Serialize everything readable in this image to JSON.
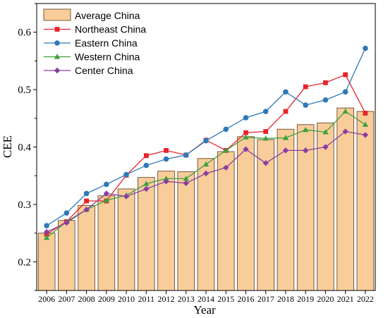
{
  "chart_data": {
    "type": "bar",
    "x": [
      2006,
      2007,
      2008,
      2009,
      2010,
      2011,
      2012,
      2013,
      2014,
      2015,
      2016,
      2017,
      2018,
      2019,
      2020,
      2021,
      2022
    ],
    "xlabel": "Year",
    "ylabel": "CEE",
    "ylim": [
      0.15,
      0.65
    ],
    "yticks": [
      0.2,
      0.3,
      0.4,
      0.5,
      0.6
    ],
    "grid": false,
    "legend_position": "top-left",
    "bars": {
      "name": "Average China",
      "color": "#f9cd9a",
      "edge_color": "#6b4a2a",
      "values": [
        0.25,
        0.272,
        0.298,
        0.315,
        0.327,
        0.347,
        0.358,
        0.357,
        0.38,
        0.392,
        0.418,
        0.413,
        0.431,
        0.439,
        0.442,
        0.468,
        0.462
      ]
    },
    "series": [
      {
        "name": "Northeast China",
        "color": "#e8232b",
        "marker": "square",
        "values": [
          0.248,
          0.27,
          0.306,
          0.306,
          0.351,
          0.385,
          0.394,
          0.386,
          0.412,
          0.394,
          0.425,
          0.427,
          0.462,
          0.505,
          0.512,
          0.526,
          0.459
        ]
      },
      {
        "name": "Eastern China",
        "color": "#2e7ab8",
        "marker": "circle",
        "values": [
          0.263,
          0.285,
          0.319,
          0.335,
          0.352,
          0.368,
          0.379,
          0.386,
          0.411,
          0.431,
          0.451,
          0.462,
          0.496,
          0.473,
          0.482,
          0.496,
          0.572
        ]
      },
      {
        "name": "Western China",
        "color": "#3ea13e",
        "marker": "triangle",
        "values": [
          0.242,
          0.27,
          0.291,
          0.307,
          0.316,
          0.336,
          0.345,
          0.345,
          0.37,
          0.394,
          0.417,
          0.415,
          0.416,
          0.43,
          0.426,
          0.462,
          0.439
        ]
      },
      {
        "name": "Center China",
        "color": "#8a3ea0",
        "marker": "diamond",
        "values": [
          0.252,
          0.268,
          0.291,
          0.319,
          0.314,
          0.327,
          0.34,
          0.337,
          0.354,
          0.364,
          0.396,
          0.372,
          0.394,
          0.394,
          0.4,
          0.427,
          0.421
        ]
      }
    ]
  }
}
